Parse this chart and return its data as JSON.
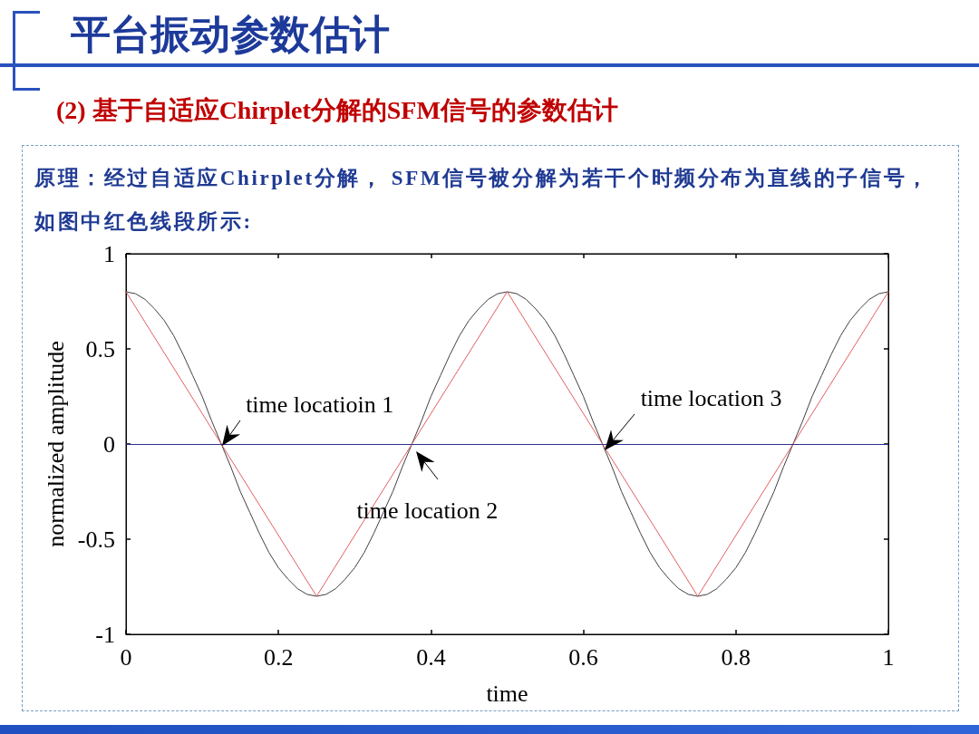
{
  "chart_data": {
    "type": "line",
    "title": "平台振动参数估计",
    "subtitle": "(2) 基于自适应Chirplet分解的SFM信号的参数估计",
    "xlabel": "time",
    "ylabel": "normalized amplitude",
    "annotations": [
      "原理：经过自适应Chirplet分解， SFM信号被分解为若干个时频分布为直线的子信号，如图中红色线段所示:",
      {
        "text": "time locatioin 1",
        "x": 0.125,
        "y": 0
      },
      {
        "text": "time location 2",
        "x": 0.375,
        "y": 0
      },
      {
        "text": "time location 3",
        "x": 0.625,
        "y": 0
      }
    ],
    "series": [
      {
        "color": "#404040",
        "x": [
          0,
          0.0125,
          0.025,
          0.0375,
          0.05,
          0.0625,
          0.075,
          0.0875,
          0.1,
          0.1125,
          0.125,
          0.1375,
          0.15,
          0.1625,
          0.175,
          0.1875,
          0.2,
          0.2125,
          0.225,
          0.2375,
          0.25,
          0.2625,
          0.275,
          0.2875,
          0.3,
          0.3125,
          0.325,
          0.3375,
          0.35,
          0.3625,
          0.375,
          0.3875,
          0.4,
          0.4125,
          0.425,
          0.4375,
          0.45,
          0.4625,
          0.475,
          0.4875,
          0.5,
          0.5125,
          0.525,
          0.5375,
          0.55,
          0.5625,
          0.575,
          0.5875,
          0.6,
          0.6125,
          0.625,
          0.6375,
          0.65,
          0.6625,
          0.675,
          0.6875,
          0.7,
          0.7125,
          0.725,
          0.7375,
          0.75,
          0.7625,
          0.775,
          0.7875,
          0.8,
          0.8125,
          0.825,
          0.8375,
          0.85,
          0.8625,
          0.875,
          0.8875,
          0.9,
          0.9125,
          0.925,
          0.9375,
          0.95,
          0.9625,
          0.975,
          0.9875,
          1
        ],
        "values": [
          0.8,
          0.79,
          0.76,
          0.71,
          0.65,
          0.57,
          0.47,
          0.36,
          0.25,
          0.12,
          0,
          -0.12,
          -0.25,
          -0.36,
          -0.47,
          -0.57,
          -0.65,
          -0.71,
          -0.76,
          -0.79,
          -0.8,
          -0.79,
          -0.76,
          -0.71,
          -0.65,
          -0.57,
          -0.47,
          -0.36,
          -0.25,
          -0.12,
          0,
          0.12,
          0.25,
          0.36,
          0.47,
          0.57,
          0.65,
          0.71,
          0.76,
          0.79,
          0.8,
          0.79,
          0.76,
          0.71,
          0.65,
          0.57,
          0.47,
          0.36,
          0.25,
          0.12,
          0,
          -0.12,
          -0.25,
          -0.36,
          -0.47,
          -0.57,
          -0.65,
          -0.71,
          -0.76,
          -0.79,
          -0.8,
          -0.79,
          -0.76,
          -0.71,
          -0.65,
          -0.57,
          -0.47,
          -0.36,
          -0.25,
          -0.12,
          0,
          0.12,
          0.25,
          0.36,
          0.47,
          0.57,
          0.65,
          0.71,
          0.76,
          0.79,
          0.8
        ]
      },
      {
        "color": "#e06060",
        "x": [
          0,
          0.25,
          0.5,
          0.75,
          1
        ],
        "values": [
          0.8,
          -0.8,
          0.8,
          -0.8,
          0.8
        ]
      }
    ],
    "xlim": [
      0,
      1
    ],
    "ylim": [
      -1,
      1
    ],
    "xticks": [
      0,
      0.2,
      0.4,
      0.6,
      0.8,
      1
    ],
    "yticks": [
      -1,
      -0.5,
      0,
      0.5,
      1
    ],
    "ref_lines": [
      {
        "axis": "y",
        "value": 0,
        "color": "#2b2f8f"
      }
    ]
  }
}
